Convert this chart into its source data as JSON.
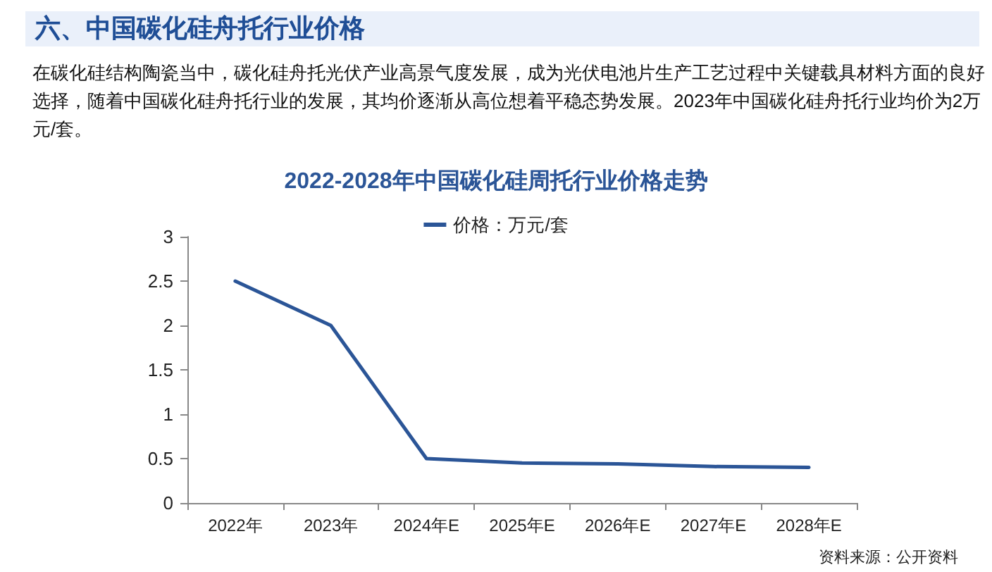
{
  "chart_data": {
    "type": "line",
    "title": "2022-2028年中国碳化硅周托行业价格走势",
    "categories": [
      "2022年",
      "2023年",
      "2024年E",
      "2025年E",
      "2026年E",
      "2027年E",
      "2028年E"
    ],
    "series": [
      {
        "name": "价格：万元/套",
        "color": "#2b5597",
        "values": [
          2.5,
          2,
          0.5,
          0.45,
          0.44,
          0.41,
          0.4
        ]
      }
    ],
    "ylim": [
      0,
      3
    ],
    "yticks": [
      0,
      0.5,
      1,
      1.5,
      2,
      2.5,
      3
    ],
    "grid": false,
    "legend": "top",
    "marker": "none",
    "line_style": "solid",
    "annotations": [
      "六、中国碳化硅舟托行业价格",
      "在碳化硅结构陶瓷当中，碳化硅舟托光伏产业高景气度发展，成为光伏电池片生产工艺过程中关键载具材料方面的良好选择，随着中国碳化硅舟托行业的发展，其均价逐渐从高位想着平稳态势发展。2023年中国碳化硅舟托行业均价为2万元/套。",
      "资料来源：公开资料"
    ]
  }
}
